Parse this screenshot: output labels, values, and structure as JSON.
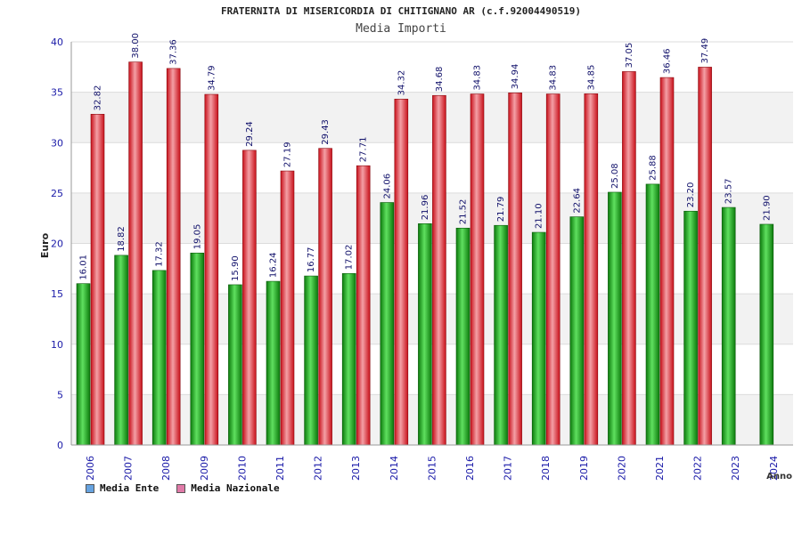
{
  "chart_data": {
    "type": "bar",
    "title": "FRATERNITA DI MISERICORDIA DI CHITIGNANO AR (c.f.92004490519)",
    "subtitle": "Media Importi",
    "xlabel": "Anno",
    "ylabel": "Euro",
    "ylim": [
      0,
      40
    ],
    "yticks": [
      "0",
      "5",
      "10",
      "15",
      "20",
      "25",
      "30",
      "35",
      "40"
    ],
    "grid": true,
    "legend_position": "bottom-left",
    "categories": [
      "2006",
      "2007",
      "2008",
      "2009",
      "2010",
      "2011",
      "2012",
      "2013",
      "2014",
      "2015",
      "2016",
      "2017",
      "2018",
      "2019",
      "2020",
      "2021",
      "2022",
      "2023",
      "2024"
    ],
    "series": [
      {
        "name": "Media Ente",
        "legend_color": "#66a3e0",
        "color": "#1faa1f",
        "values": [
          16.01,
          18.82,
          17.32,
          19.05,
          15.9,
          16.24,
          16.77,
          17.02,
          24.06,
          21.96,
          21.52,
          21.79,
          21.1,
          22.64,
          25.08,
          25.88,
          23.2,
          23.57,
          21.9
        ],
        "labels": [
          "16.01",
          "18.82",
          "17.32",
          "19.05",
          "15.90",
          "16.24",
          "16.77",
          "17.02",
          "24.06",
          "21.96",
          "21.52",
          "21.79",
          "21.10",
          "22.64",
          "25.08",
          "25.88",
          "23.20",
          "23.57",
          "21.90"
        ]
      },
      {
        "name": "Media Nazionale",
        "legend_color": "#e07aa8",
        "color": "#e8222e",
        "values": [
          32.82,
          38.0,
          37.36,
          34.79,
          29.24,
          27.19,
          29.43,
          27.71,
          34.32,
          34.68,
          34.83,
          34.94,
          34.83,
          34.85,
          37.05,
          36.46,
          37.49,
          null,
          null
        ],
        "labels": [
          "32.82",
          "38.00",
          "37.36",
          "34.79",
          "29.24",
          "27.19",
          "29.43",
          "27.71",
          "34.32",
          "34.68",
          "34.83",
          "34.94",
          "34.83",
          "34.85",
          "37.05",
          "36.46",
          "37.49",
          null,
          null
        ]
      }
    ]
  }
}
